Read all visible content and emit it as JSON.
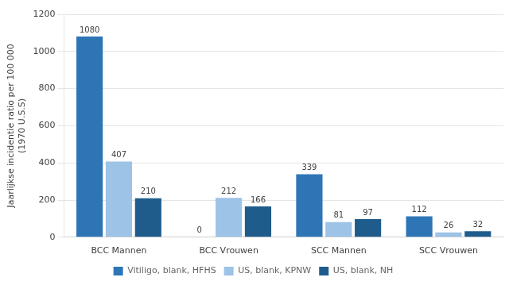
{
  "chart_data": {
    "type": "bar",
    "categories": [
      "BCC Mannen",
      "BCC Vrouwen",
      "SCC Mannen",
      "SCC Vrouwen"
    ],
    "series": [
      {
        "name": "Vitiligo, blank, HFHS",
        "color": "#2e75b6",
        "values": [
          1080,
          0,
          339,
          112
        ]
      },
      {
        "name": "US, blank, KPNW",
        "color": "#9dc3e6",
        "values": [
          407,
          212,
          81,
          26
        ]
      },
      {
        "name": "US, blank, NH",
        "color": "#1f5c8b",
        "values": [
          210,
          166,
          97,
          32
        ]
      }
    ],
    "ylabel": "Jaarlijkse incidentie ratio per 100 000\n(1970 U.S.S)",
    "ylim": [
      0,
      1200
    ],
    "yticks": [
      0,
      200,
      400,
      600,
      800,
      1000,
      1200
    ],
    "grid": true,
    "legend": "bottom",
    "data_labels": true
  }
}
